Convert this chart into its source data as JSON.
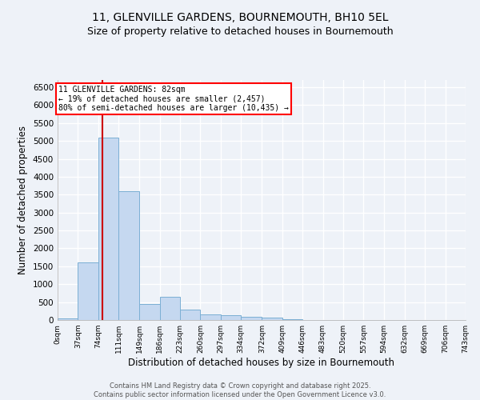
{
  "title_line1": "11, GLENVILLE GARDENS, BOURNEMOUTH, BH10 5EL",
  "title_line2": "Size of property relative to detached houses in Bournemouth",
  "xlabel": "Distribution of detached houses by size in Bournemouth",
  "ylabel": "Number of detached properties",
  "bar_color": "#c5d8f0",
  "bar_edge_color": "#7bafd4",
  "property_line_color": "#cc0000",
  "property_size": 82,
  "annotation_title": "11 GLENVILLE GARDENS: 82sqm",
  "annotation_line1": "← 19% of detached houses are smaller (2,457)",
  "annotation_line2": "80% of semi-detached houses are larger (10,435) →",
  "footer_line1": "Contains HM Land Registry data © Crown copyright and database right 2025.",
  "footer_line2": "Contains public sector information licensed under the Open Government Licence v3.0.",
  "bin_edges": [
    0,
    37,
    74,
    111,
    149,
    186,
    223,
    260,
    297,
    334,
    372,
    409,
    446,
    483,
    520,
    557,
    594,
    632,
    669,
    706,
    743
  ],
  "bin_labels": [
    "0sqm",
    "37sqm",
    "74sqm",
    "111sqm",
    "149sqm",
    "186sqm",
    "223sqm",
    "260sqm",
    "297sqm",
    "334sqm",
    "372sqm",
    "409sqm",
    "446sqm",
    "483sqm",
    "520sqm",
    "557sqm",
    "594sqm",
    "632sqm",
    "669sqm",
    "706sqm",
    "743sqm"
  ],
  "bar_heights": [
    50,
    1600,
    5100,
    3600,
    450,
    650,
    300,
    160,
    130,
    90,
    60,
    30,
    10,
    5,
    0,
    0,
    0,
    0,
    0,
    0
  ],
  "ylim": [
    0,
    6700
  ],
  "yticks": [
    0,
    500,
    1000,
    1500,
    2000,
    2500,
    3000,
    3500,
    4000,
    4500,
    5000,
    5500,
    6000,
    6500
  ],
  "background_color": "#eef2f8",
  "plot_bg_color": "#eef2f8",
  "grid_color": "#ffffff",
  "title_fontsize": 10,
  "subtitle_fontsize": 9
}
